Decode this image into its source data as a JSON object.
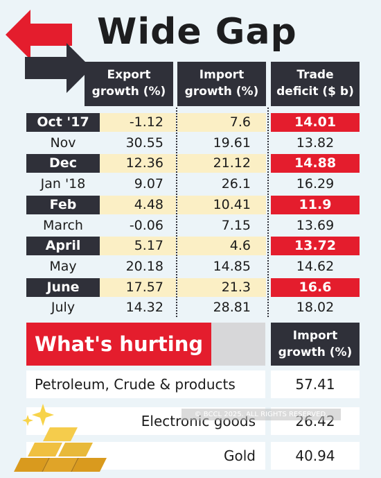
{
  "title": "Wide Gap",
  "chart_data": {
    "type": "table",
    "columns": [
      {
        "line1": "Export",
        "line2": "growth (%)"
      },
      {
        "line1": "Import",
        "line2": "growth (%)"
      },
      {
        "line1": "Trade",
        "line2": "deficit ($ b)"
      }
    ],
    "rows": [
      {
        "month": "Oct '17",
        "export": "-1.12",
        "import": "7.6",
        "deficit": "14.01",
        "highlight": true
      },
      {
        "month": "Nov",
        "export": "30.55",
        "import": "19.61",
        "deficit": "13.82",
        "highlight": false
      },
      {
        "month": "Dec",
        "export": "12.36",
        "import": "21.12",
        "deficit": "14.88",
        "highlight": true
      },
      {
        "month": "Jan '18",
        "export": "9.07",
        "import": "26.1",
        "deficit": "16.29",
        "highlight": false
      },
      {
        "month": "Feb",
        "export": "4.48",
        "import": "10.41",
        "deficit": "11.9",
        "highlight": true
      },
      {
        "month": "March",
        "export": "-0.06",
        "import": "7.15",
        "deficit": "13.69",
        "highlight": false
      },
      {
        "month": "April",
        "export": "5.17",
        "import": "4.6",
        "deficit": "13.72",
        "highlight": true
      },
      {
        "month": "May",
        "export": "20.18",
        "import": "14.85",
        "deficit": "14.62",
        "highlight": false
      },
      {
        "month": "June",
        "export": "17.57",
        "import": "21.3",
        "deficit": "16.6",
        "highlight": true
      },
      {
        "month": "July",
        "export": "14.32",
        "import": "28.81",
        "deficit": "18.02",
        "highlight": false
      }
    ],
    "hurting": {
      "heading": "What's hurting",
      "column": {
        "line1": "Import",
        "line2": "growth (%)"
      },
      "items": [
        {
          "name": "Petroleum, Crude & products",
          "value": "57.41"
        },
        {
          "name": "Electronic goods",
          "value": "26.42"
        },
        {
          "name": "Gold",
          "value": "40.94"
        }
      ]
    }
  },
  "watermark": "© BCCL 2025. ALL RIGHTS RESERVED.",
  "colors": {
    "background": "#ecf4f8",
    "dark": "#2f3039",
    "red": "#e41d2d",
    "cream": "#fbefc5",
    "gold": "#e8b93a"
  },
  "icons": [
    "exchange-arrows-icon",
    "gold-bars-icon",
    "sparkle-icon"
  ]
}
